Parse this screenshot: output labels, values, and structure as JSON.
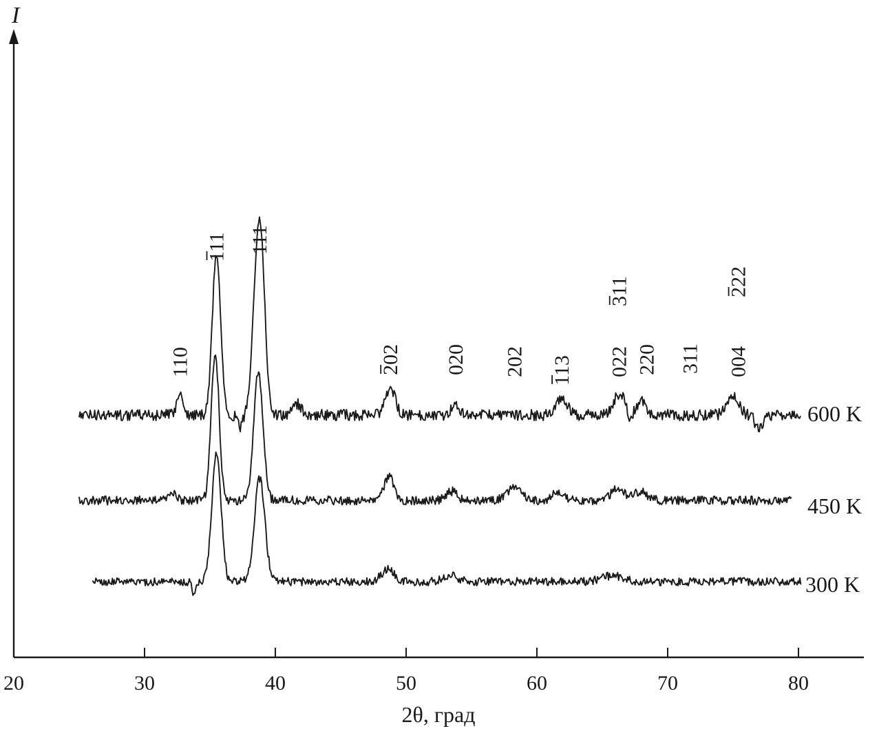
{
  "chart_data": {
    "type": "line",
    "title": "",
    "xlabel": "2θ, град",
    "ylabel": "I",
    "xlim": [
      20,
      85
    ],
    "x_ticks": [
      "20",
      "30",
      "40",
      "50",
      "60",
      "70",
      "80"
    ],
    "y_ticks": false,
    "grid": false,
    "legend": "none",
    "series": [
      {
        "name": "600 K",
        "x_range": [
          25,
          80.2
        ],
        "baseline": 0.38,
        "peaks": [
          {
            "x": 32.7,
            "h": 0.35,
            "w": 0.25
          },
          {
            "x": 35.5,
            "h": 2.65,
            "w": 0.32
          },
          {
            "x": 38.6,
            "h": 2.3,
            "w": 0.35
          },
          {
            "x": 39.0,
            "h": 1.6,
            "w": 0.3
          },
          {
            "x": 41.7,
            "h": 0.18,
            "w": 0.3
          },
          {
            "x": 48.8,
            "h": 0.42,
            "w": 0.38
          },
          {
            "x": 53.8,
            "h": 0.2,
            "w": 0.3
          },
          {
            "x": 61.9,
            "h": 0.3,
            "w": 0.4
          },
          {
            "x": 66.3,
            "h": 0.35,
            "w": 0.45
          },
          {
            "x": 68.0,
            "h": 0.22,
            "w": 0.35
          },
          {
            "x": 75.0,
            "h": 0.3,
            "w": 0.45
          }
        ],
        "dips": [
          {
            "x": 37.3,
            "h": 0.2,
            "w": 0.2
          },
          {
            "x": 67.1,
            "h": 0.2,
            "w": 0.15
          },
          {
            "x": 77.0,
            "h": 0.22,
            "w": 0.3
          }
        ]
      },
      {
        "name": "450 K",
        "x_range": [
          25,
          79.5
        ],
        "baseline": 0.38,
        "peaks": [
          {
            "x": 32.2,
            "h": 0.12,
            "w": 0.3
          },
          {
            "x": 35.4,
            "h": 2.45,
            "w": 0.3
          },
          {
            "x": 38.7,
            "h": 2.15,
            "w": 0.35
          },
          {
            "x": 48.7,
            "h": 0.42,
            "w": 0.35
          },
          {
            "x": 53.5,
            "h": 0.15,
            "w": 0.4
          },
          {
            "x": 58.3,
            "h": 0.2,
            "w": 0.6
          },
          {
            "x": 61.6,
            "h": 0.15,
            "w": 0.4
          },
          {
            "x": 66.2,
            "h": 0.2,
            "w": 0.5
          },
          {
            "x": 67.9,
            "h": 0.15,
            "w": 0.5
          }
        ],
        "dips": []
      },
      {
        "name": "300 K",
        "x_range": [
          26,
          80.2
        ],
        "baseline": 0.3,
        "peaks": [
          {
            "x": 35.5,
            "h": 2.1,
            "w": 0.35
          },
          {
            "x": 38.8,
            "h": 1.7,
            "w": 0.4
          },
          {
            "x": 48.6,
            "h": 0.2,
            "w": 0.5
          },
          {
            "x": 53.4,
            "h": 0.12,
            "w": 0.5
          },
          {
            "x": 65.8,
            "h": 0.1,
            "w": 0.8
          }
        ],
        "dips": [
          {
            "x": 33.8,
            "h": 0.2,
            "w": 0.15
          }
        ]
      }
    ],
    "annotations": [
      {
        "text": "110",
        "x": 32.7,
        "overbar": ""
      },
      {
        "text": "111",
        "x": 35.5,
        "overbar": "1"
      },
      {
        "text": "111",
        "x": 38.8,
        "overbar": ""
      },
      {
        "text": "202",
        "x": 48.8,
        "overbar": "2"
      },
      {
        "text": "020",
        "x": 53.8,
        "overbar": ""
      },
      {
        "text": "202",
        "x": 58.3,
        "overbar": ""
      },
      {
        "text": "113",
        "x": 61.9,
        "overbar": "1"
      },
      {
        "text": "311",
        "x": 66.3,
        "overbar": "3"
      },
      {
        "text": "022",
        "x": 66.3,
        "overbar": ""
      },
      {
        "text": "220",
        "x": 68.4,
        "overbar": ""
      },
      {
        "text": "311",
        "x": 71.7,
        "overbar": ""
      },
      {
        "text": "222",
        "x": 75.4,
        "overbar": "2"
      },
      {
        "text": "004",
        "x": 75.4,
        "overbar": ""
      }
    ]
  }
}
